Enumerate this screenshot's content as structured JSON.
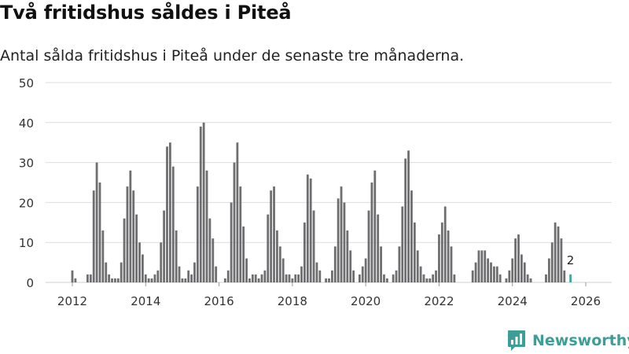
{
  "header": {
    "title": "Två fritidshus såldes i Piteå",
    "subtitle": "Antal sålda fritidshus i Piteå under de senaste tre månaderna."
  },
  "brand": {
    "name": "Newsworthy",
    "icon": "newsworthy-logo-icon"
  },
  "colors": {
    "bar": "#6e6e70",
    "highlight": "#3fa79f",
    "grid": "#dddddd",
    "brand": "#3d9e97"
  },
  "chart_data": {
    "type": "bar",
    "title": "Två fritidshus såldes i Piteå",
    "subtitle": "Antal sålda fritidshus i Piteå under de senaste tre månaderna.",
    "xlabel": "",
    "ylabel": "",
    "ylim": [
      0,
      50
    ],
    "y_ticks": [
      "0",
      "10",
      "20",
      "30",
      "40",
      "50"
    ],
    "x_ticks": [
      "2012",
      "2014",
      "2016",
      "2018",
      "2020",
      "2022",
      "2024",
      "2026"
    ],
    "grid": true,
    "start": "2012-01",
    "values": [
      3,
      1,
      0,
      0,
      0,
      2,
      2,
      23,
      30,
      25,
      13,
      5,
      2,
      1,
      1,
      1,
      5,
      16,
      24,
      28,
      23,
      17,
      10,
      7,
      2,
      1,
      1,
      2,
      3,
      10,
      18,
      34,
      35,
      29,
      13,
      4,
      1,
      1,
      3,
      2,
      5,
      24,
      39,
      40,
      28,
      16,
      11,
      4,
      0,
      0,
      1,
      3,
      20,
      30,
      35,
      24,
      14,
      6,
      1,
      2,
      2,
      1,
      2,
      3,
      17,
      23,
      24,
      13,
      9,
      6,
      2,
      2,
      1,
      2,
      2,
      4,
      15,
      27,
      26,
      18,
      5,
      3,
      0,
      1,
      1,
      3,
      9,
      21,
      24,
      20,
      13,
      8,
      3,
      0,
      2,
      4,
      6,
      18,
      25,
      28,
      17,
      9,
      2,
      1,
      0,
      2,
      3,
      9,
      19,
      31,
      33,
      23,
      15,
      8,
      4,
      2,
      1,
      1,
      2,
      3,
      12,
      15,
      19,
      13,
      9,
      2,
      0,
      0,
      0,
      0,
      0,
      3,
      5,
      8,
      8,
      8,
      6,
      5,
      4,
      4,
      2,
      0,
      1,
      3,
      6,
      11,
      12,
      7,
      5,
      2,
      1,
      0,
      0,
      0,
      0,
      2,
      6,
      10,
      15,
      14,
      11,
      3,
      0,
      2
    ],
    "highlight_last": true,
    "annotation": {
      "label": "2",
      "value": 2
    }
  }
}
